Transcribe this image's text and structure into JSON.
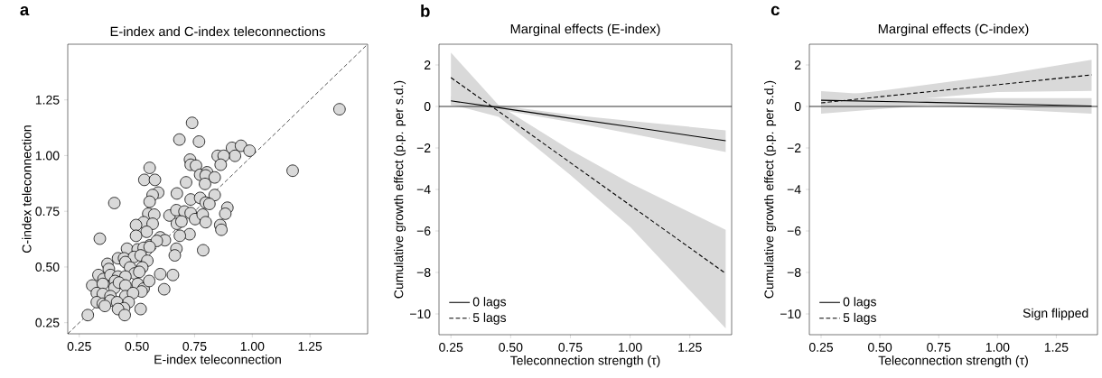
{
  "chart_data": [
    {
      "type": "scatter",
      "title": "E-index and C-index teleconnections",
      "xlabel": "E-index teleconnection",
      "ylabel": "C-index teleconnection",
      "annotations": [
        "a"
      ],
      "xlim": [
        0.2,
        1.5
      ],
      "ylim": [
        0.2,
        1.5
      ],
      "xticks": [
        {
          "value": 0.25,
          "label": "0.25"
        },
        {
          "value": 0.5,
          "label": "0.50"
        },
        {
          "value": 0.75,
          "label": "0.75"
        },
        {
          "value": 1.0,
          "label": "1.00"
        },
        {
          "value": 1.25,
          "label": "1.25"
        }
      ],
      "yticks": [
        {
          "value": 0.25,
          "label": "0.25"
        },
        {
          "value": 0.5,
          "label": "0.50"
        },
        {
          "value": 0.75,
          "label": "0.75"
        },
        {
          "value": 1.0,
          "label": "1.00"
        },
        {
          "value": 1.25,
          "label": "1.25"
        }
      ],
      "series": [
        {
          "type": "line",
          "color": "#000000",
          "line_style": "dashed",
          "x": [
            0.2,
            1.5
          ],
          "values": [
            0.2,
            1.5
          ]
        },
        {
          "color": "#d9d9d9",
          "x": [
            1.378,
            1.175,
            0.739,
            0.684,
            0.769,
            0.912,
            0.951,
            0.988,
            0.925,
            0.85,
            0.876,
            0.863,
            0.73,
            0.733,
            0.756,
            0.774,
            0.804,
            0.798,
            0.837,
            0.795,
            0.555,
            0.532,
            0.578,
            0.713,
            0.592,
            0.568,
            0.555,
            0.402,
            0.673,
            0.837,
            0.733,
            0.774,
            0.798,
            0.814,
            0.892,
            0.883,
            0.861,
            0.866,
            0.641,
            0.671,
            0.706,
            0.733,
            0.752,
            0.785,
            0.798,
            0.673,
            0.693,
            0.549,
            0.575,
            0.529,
            0.568,
            0.496,
            0.542,
            0.496,
            0.728,
            0.686,
            0.339,
            0.601,
            0.621,
            0.555,
            0.586,
            0.457,
            0.503,
            0.529,
            0.555,
            0.671,
            0.664,
            0.787,
            0.418,
            0.444,
            0.487,
            0.516,
            0.545,
            0.45,
            0.47,
            0.372,
            0.378,
            0.523,
            0.49,
            0.51,
            0.601,
            0.656,
            0.333,
            0.355,
            0.385,
            0.418,
            0.45,
            0.405,
            0.306,
            0.352,
            0.402,
            0.422,
            0.45,
            0.503,
            0.529,
            0.553,
            0.52,
            0.618,
            0.326,
            0.352,
            0.385,
            0.45,
            0.483,
            0.326,
            0.352,
            0.385,
            0.414,
            0.464,
            0.444,
            0.361,
            0.418,
            0.516,
            0.447,
            0.287
          ],
          "values": [
            1.208,
            0.932,
            1.147,
            1.072,
            1.063,
            1.035,
            1.044,
            1.022,
            0.999,
            0.999,
            0.999,
            0.959,
            0.982,
            0.959,
            0.955,
            0.914,
            0.925,
            0.911,
            0.902,
            0.873,
            0.945,
            0.891,
            0.891,
            0.88,
            0.834,
            0.823,
            0.793,
            0.787,
            0.83,
            0.823,
            0.803,
            0.81,
            0.789,
            0.783,
            0.766,
            0.739,
            0.688,
            0.667,
            0.731,
            0.755,
            0.749,
            0.742,
            0.715,
            0.735,
            0.701,
            0.694,
            0.704,
            0.739,
            0.735,
            0.701,
            0.694,
            0.688,
            0.658,
            0.64,
            0.647,
            0.64,
            0.627,
            0.633,
            0.62,
            0.597,
            0.617,
            0.582,
            0.579,
            0.586,
            0.59,
            0.582,
            0.552,
            0.575,
            0.539,
            0.539,
            0.545,
            0.552,
            0.528,
            0.522,
            0.498,
            0.514,
            0.491,
            0.498,
            0.471,
            0.478,
            0.468,
            0.464,
            0.464,
            0.446,
            0.464,
            0.457,
            0.457,
            0.437,
            0.417,
            0.424,
            0.406,
            0.43,
            0.417,
            0.424,
            0.403,
            0.437,
            0.39,
            0.4,
            0.383,
            0.379,
            0.369,
            0.369,
            0.383,
            0.342,
            0.335,
            0.349,
            0.342,
            0.342,
            0.315,
            0.325,
            0.311,
            0.311,
            0.284,
            0.284
          ]
        }
      ]
    },
    {
      "type": "line",
      "title": "Marginal effects (E-index)",
      "xlabel": "Teleconnection strength (τ)",
      "ylabel": "Cumulative growth effect (p.p. per s.d.)",
      "annotations": [
        "b"
      ],
      "xlim": [
        0.2,
        1.425
      ],
      "ylim": [
        -11,
        3
      ],
      "xticks": [
        {
          "value": 0.25,
          "label": "0.25"
        },
        {
          "value": 0.5,
          "label": "0.50"
        },
        {
          "value": 0.75,
          "label": "0.75"
        },
        {
          "value": 1.0,
          "label": "1.00"
        },
        {
          "value": 1.25,
          "label": "1.25"
        }
      ],
      "yticks": [
        {
          "value": -10,
          "label": "−10"
        },
        {
          "value": -8,
          "label": "−8"
        },
        {
          "value": -6,
          "label": "−6"
        },
        {
          "value": -4,
          "label": "−4"
        },
        {
          "value": -2,
          "label": "−2"
        },
        0,
        2
      ],
      "legend": "bottom left",
      "ref_lines": [
        {
          "axis": "y",
          "value": 0,
          "color": "#000000"
        }
      ],
      "series": [
        {
          "name": "0 lags",
          "color": "#000000",
          "line_style": "solid",
          "x": [
            0.25,
            0.45,
            0.75,
            1.0,
            1.4
          ],
          "values": [
            0.27,
            -0.06,
            -0.57,
            -0.98,
            -1.65
          ],
          "lower": [
            0.05,
            -0.15,
            -0.75,
            -1.3,
            -2.2
          ],
          "upper": [
            0.5,
            0.05,
            -0.4,
            -0.7,
            -1.15
          ]
        },
        {
          "name": "5 lags",
          "color": "#000000",
          "line_style": "dashed",
          "x": [
            0.25,
            0.45,
            0.75,
            1.0,
            1.4
          ],
          "values": [
            1.39,
            -0.24,
            -2.71,
            -4.76,
            -8.05
          ],
          "lower": [
            0.1,
            -0.5,
            -3.3,
            -5.8,
            -10.7
          ],
          "upper": [
            2.6,
            0.05,
            -2.1,
            -3.7,
            -5.95
          ]
        }
      ]
    },
    {
      "type": "line",
      "title": "Marginal effects (C-index)",
      "xlabel": "Teleconnection strength (τ)",
      "ylabel": "Cumulative growth effect (p.p. per s.d.)",
      "annotations": [
        "c",
        "Sign flipped"
      ],
      "xlim": [
        0.2,
        1.425
      ],
      "ylim": [
        -11,
        3
      ],
      "xticks": [
        {
          "value": 0.25,
          "label": "0.25"
        },
        {
          "value": 0.5,
          "label": "0.50"
        },
        {
          "value": 0.75,
          "label": "0.75"
        },
        {
          "value": 1.0,
          "label": "1.00"
        },
        {
          "value": 1.25,
          "label": "1.25"
        }
      ],
      "yticks": [
        {
          "value": -10,
          "label": "−10"
        },
        {
          "value": -8,
          "label": "−8"
        },
        {
          "value": -6,
          "label": "−6"
        },
        {
          "value": -4,
          "label": "−4"
        },
        {
          "value": -2,
          "label": "−2"
        },
        0,
        2
      ],
      "legend": "bottom left",
      "ref_lines": [
        {
          "axis": "y",
          "value": 0,
          "color": "#000000"
        }
      ],
      "series": [
        {
          "name": "0 lags",
          "color": "#000000",
          "line_style": "solid",
          "x": [
            0.25,
            0.7,
            1.4
          ],
          "values": [
            0.3,
            0.2,
            0.02
          ],
          "lower": [
            -0.35,
            0.05,
            -0.35
          ],
          "upper": [
            0.74,
            0.4,
            0.4
          ]
        },
        {
          "name": "5 lags",
          "color": "#000000",
          "line_style": "dashed",
          "x": [
            0.25,
            0.5,
            1.0,
            1.4
          ],
          "values": [
            0.17,
            0.47,
            1.05,
            1.52
          ],
          "lower": [
            -0.1,
            0.2,
            0.7,
            0.75
          ],
          "upper": [
            0.45,
            0.75,
            1.5,
            2.25
          ]
        }
      ]
    }
  ]
}
